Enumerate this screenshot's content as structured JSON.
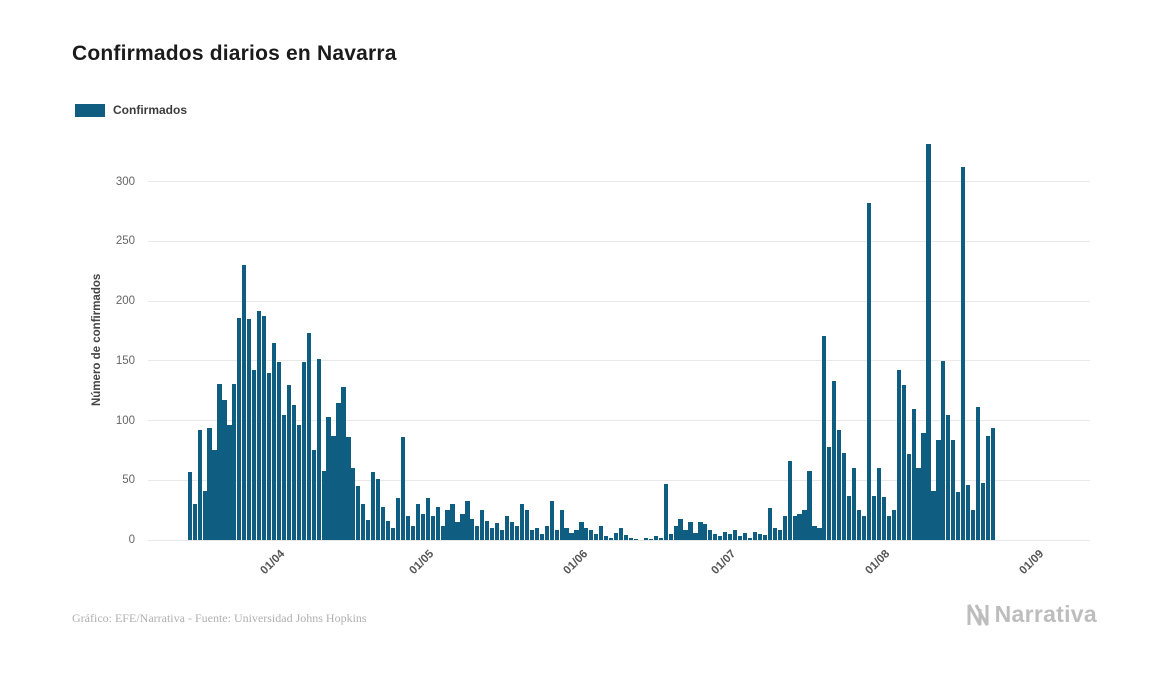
{
  "title": "Confirmados diarios en Navarra",
  "legend": {
    "label": "Confirmados"
  },
  "footer": {
    "credit": "Gráfico: EFE/Narrativa - Fuente: Universidad Johns Hopkins",
    "brand": "Narrativa"
  },
  "colors": {
    "bar": "#0f5d80",
    "grid": "#e8e8e8",
    "title_text": "#1b1b1b",
    "axis_text": "#555555",
    "muted_text": "#b0b0b0",
    "brand_text": "#bdbdbd"
  },
  "chart_data": {
    "type": "bar",
    "title": "Confirmados diarios en Navarra",
    "xlabel": "",
    "ylabel": "Número de confirmados",
    "ylim": [
      0,
      335
    ],
    "yticks": [
      0,
      50,
      100,
      150,
      200,
      250,
      300
    ],
    "xticks": {
      "labels": [
        "01/04",
        "01/05",
        "01/06",
        "01/07",
        "01/08",
        "01/09"
      ],
      "slots": [
        26,
        56,
        87,
        117,
        148,
        179
      ]
    },
    "total_slots": 190,
    "first_bar_slot": 8,
    "grid": true,
    "legend_position": "top-left",
    "series": [
      {
        "name": "Confirmados",
        "color": "#0f5d80",
        "start_date": "2020-03-14",
        "values": [
          57,
          30,
          92,
          41,
          94,
          75,
          131,
          117,
          96,
          131,
          186,
          230,
          185,
          142,
          192,
          188,
          140,
          165,
          149,
          105,
          130,
          113,
          96,
          149,
          173,
          75,
          152,
          58,
          103,
          87,
          115,
          128,
          86,
          60,
          45,
          30,
          17,
          57,
          51,
          28,
          16,
          10,
          35,
          86,
          20,
          12,
          30,
          22,
          35,
          20,
          28,
          12,
          25,
          30,
          15,
          22,
          33,
          18,
          12,
          25,
          16,
          10,
          14,
          8,
          20,
          15,
          12,
          30,
          25,
          8,
          10,
          5,
          12,
          33,
          8,
          25,
          10,
          6,
          8,
          15,
          10,
          8,
          5,
          12,
          3,
          2,
          6,
          10,
          4,
          2,
          1,
          0,
          2,
          1,
          3,
          2,
          47,
          5,
          12,
          18,
          8,
          15,
          6,
          15,
          13,
          8,
          5,
          3,
          7,
          5,
          8,
          3,
          6,
          2,
          7,
          5,
          4,
          27,
          10,
          8,
          20,
          66,
          20,
          22,
          25,
          58,
          12,
          10,
          171,
          78,
          133,
          92,
          73,
          37,
          60,
          25,
          20,
          282,
          37,
          60,
          36,
          20,
          25,
          142,
          130,
          72,
          110,
          60,
          90,
          332,
          41,
          84,
          150,
          105,
          84,
          40,
          312,
          46,
          25,
          111,
          48,
          87,
          94
        ]
      }
    ]
  }
}
